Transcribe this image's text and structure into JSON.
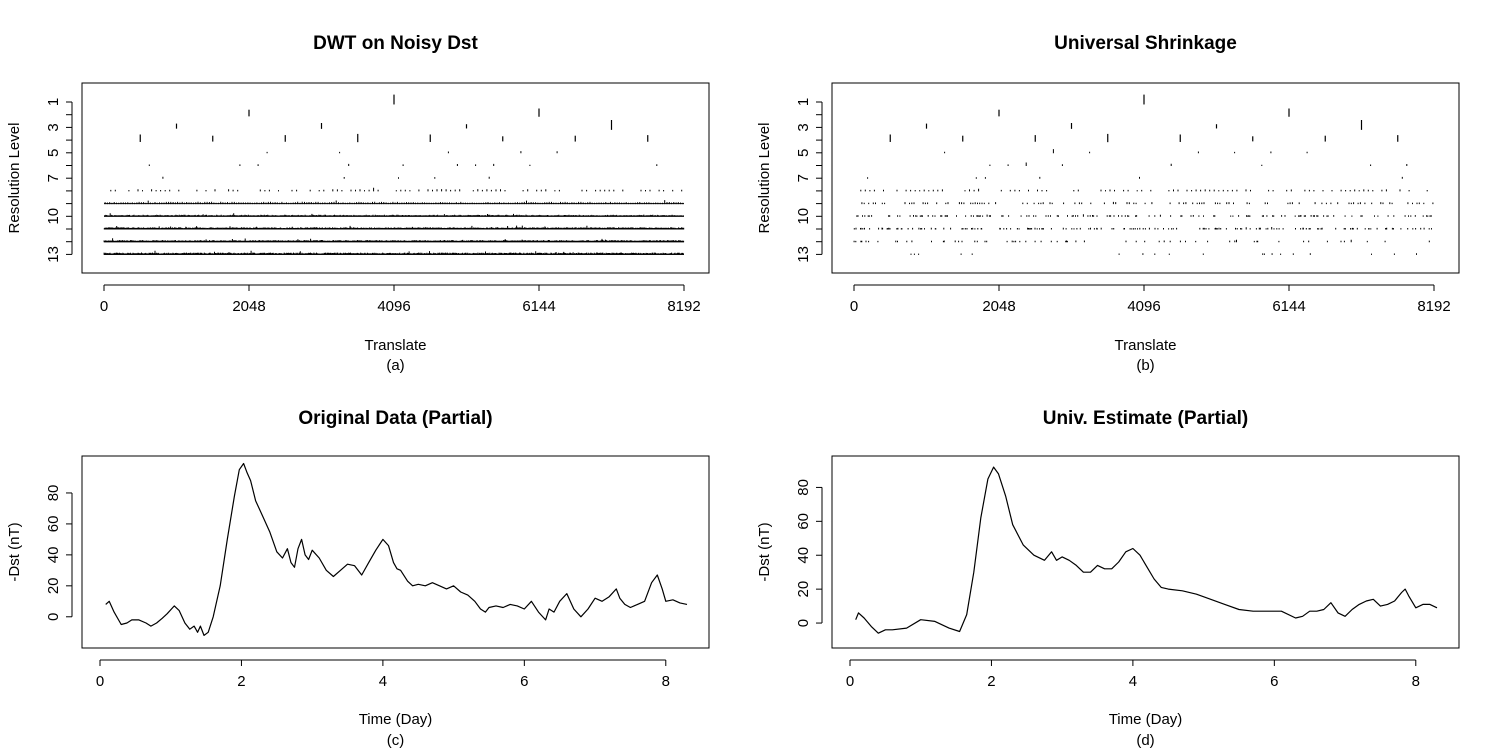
{
  "chart_data": [
    {
      "id": "a",
      "type": "wavelet-coefficient-plot",
      "title": "DWT on Noisy Dst",
      "xlabel": "Translate",
      "ylabel": "Resolution Level",
      "caption": "(a)",
      "xlim": [
        0,
        8192
      ],
      "x_ticks": [
        "0",
        "2048",
        "4096",
        "6144",
        "8192"
      ],
      "y_ticks": [
        "1",
        "3",
        "5",
        "7",
        "10",
        "13"
      ],
      "levels": [
        1,
        2,
        3,
        4,
        5,
        6,
        7,
        8,
        9,
        10,
        11,
        12,
        13
      ],
      "spikes": {
        "1": [
          [
            4096,
            0.9
          ]
        ],
        "2": [
          [
            2048,
            0.5
          ],
          [
            6144,
            0.7
          ]
        ],
        "3": [
          [
            1024,
            0.3
          ],
          [
            3072,
            0.4
          ],
          [
            5120,
            0.2
          ],
          [
            7168,
            0.9
          ]
        ],
        "4": [
          [
            512,
            0.6
          ],
          [
            1536,
            0.4
          ],
          [
            2560,
            0.5
          ],
          [
            3584,
            0.7
          ],
          [
            4608,
            0.6
          ],
          [
            5632,
            0.3
          ],
          [
            6656,
            0.4
          ],
          [
            7680,
            0.5
          ]
        ]
      },
      "density": {
        "5": 0.25,
        "6": 0.2,
        "7": 0.12,
        "8": 0.6,
        "9": 1,
        "10": 1,
        "11": 1,
        "12": 1,
        "13": 1
      },
      "noise": {
        "5": 0.35,
        "6": 0.3,
        "7": 0.25,
        "8": 0.28,
        "9": 0.28,
        "10": 0.22,
        "11": 0.25,
        "12": 0.25,
        "13": 0.3
      }
    },
    {
      "id": "b",
      "type": "wavelet-coefficient-plot",
      "title": "Universal Shrinkage",
      "xlabel": "Translate",
      "ylabel": "Resolution Level",
      "caption": "(b)",
      "xlim": [
        0,
        8192
      ],
      "x_ticks": [
        "0",
        "2048",
        "4096",
        "6144",
        "8192"
      ],
      "y_ticks": [
        "1",
        "3",
        "5",
        "7",
        "10",
        "13"
      ],
      "levels": [
        1,
        2,
        3,
        4,
        5,
        6,
        7,
        8,
        9,
        10,
        11,
        12,
        13
      ],
      "spikes": {
        "1": [
          [
            4096,
            0.9
          ]
        ],
        "2": [
          [
            2048,
            0.5
          ],
          [
            6144,
            0.7
          ]
        ],
        "3": [
          [
            1024,
            0.3
          ],
          [
            3072,
            0.4
          ],
          [
            5120,
            0.2
          ],
          [
            7168,
            0.9
          ]
        ],
        "4": [
          [
            512,
            0.6
          ],
          [
            1536,
            0.4
          ],
          [
            2560,
            0.5
          ],
          [
            3584,
            0.7
          ],
          [
            4608,
            0.6
          ],
          [
            5632,
            0.3
          ],
          [
            6656,
            0.4
          ],
          [
            7680,
            0.5
          ]
        ]
      },
      "density": {
        "5": 0.25,
        "6": 0.2,
        "7": 0.12,
        "8": 0.5,
        "9": 0.35,
        "10": 0.25,
        "11": 0.15,
        "12": 0.08,
        "13": 0.03
      },
      "noise": {
        "5": 0.35,
        "6": 0.3,
        "7": 0.25,
        "8": 0.2,
        "9": 0.2,
        "10": 0.15,
        "11": 0.12,
        "12": 0.12,
        "13": 0.1
      }
    },
    {
      "id": "c",
      "type": "line",
      "title": "Original Data (Partial)",
      "xlabel": "Time (Day)",
      "ylabel": "-Dst (nT)",
      "caption": "(c)",
      "xlim": [
        0,
        8.3
      ],
      "ylim": [
        -15,
        100
      ],
      "x_ticks": [
        0,
        2,
        4,
        6,
        8
      ],
      "y_ticks": [
        0,
        20,
        40,
        60,
        80
      ],
      "x": [
        0.08,
        0.13,
        0.2,
        0.3,
        0.38,
        0.45,
        0.55,
        0.65,
        0.72,
        0.8,
        0.88,
        0.95,
        1.05,
        1.12,
        1.2,
        1.27,
        1.33,
        1.38,
        1.42,
        1.47,
        1.53,
        1.6,
        1.7,
        1.8,
        1.9,
        1.97,
        2.03,
        2.08,
        2.13,
        2.2,
        2.3,
        2.4,
        2.5,
        2.58,
        2.65,
        2.7,
        2.75,
        2.8,
        2.85,
        2.9,
        2.95,
        3.0,
        3.1,
        3.2,
        3.3,
        3.4,
        3.5,
        3.6,
        3.7,
        3.8,
        3.9,
        4.0,
        4.08,
        4.15,
        4.2,
        4.25,
        4.35,
        4.42,
        4.5,
        4.6,
        4.7,
        4.8,
        4.9,
        5.0,
        5.1,
        5.2,
        5.3,
        5.38,
        5.45,
        5.5,
        5.6,
        5.7,
        5.8,
        5.9,
        6.0,
        6.1,
        6.2,
        6.3,
        6.35,
        6.42,
        6.5,
        6.6,
        6.7,
        6.8,
        6.9,
        7.0,
        7.1,
        7.2,
        7.3,
        7.35,
        7.42,
        7.5,
        7.6,
        7.7,
        7.8,
        7.88,
        7.95,
        8.0,
        8.1,
        8.2,
        8.3
      ],
      "y": [
        8,
        10,
        3,
        -5,
        -4,
        -2,
        -2,
        -4,
        -6,
        -4,
        -1,
        2,
        7,
        4,
        -4,
        -8,
        -6,
        -10,
        -6,
        -12,
        -10,
        0,
        20,
        50,
        78,
        95,
        99,
        93,
        88,
        75,
        65,
        55,
        42,
        38,
        44,
        35,
        32,
        44,
        50,
        40,
        37,
        43,
        38,
        30,
        26,
        30,
        34,
        33,
        27,
        35,
        43,
        50,
        46,
        35,
        31,
        30,
        23,
        20,
        21,
        20,
        22,
        20,
        18,
        20,
        16,
        14,
        10,
        5,
        3,
        6,
        7,
        6,
        8,
        7,
        5,
        10,
        3,
        -2,
        5,
        3,
        10,
        15,
        5,
        0,
        5,
        12,
        10,
        13,
        18,
        12,
        8,
        6,
        8,
        10,
        22,
        27,
        18,
        10,
        11,
        9,
        8
      ]
    },
    {
      "id": "d",
      "type": "line",
      "title": "Univ. Estimate (Partial)",
      "xlabel": "Time (Day)",
      "ylabel": "-Dst (nT)",
      "caption": "(d)",
      "xlim": [
        0,
        8.3
      ],
      "ylim": [
        -10,
        95
      ],
      "x_ticks": [
        0,
        2,
        4,
        6,
        8
      ],
      "y_ticks": [
        0,
        20,
        40,
        60,
        80
      ],
      "x": [
        0.08,
        0.12,
        0.2,
        0.3,
        0.4,
        0.5,
        0.6,
        0.8,
        1.0,
        1.2,
        1.4,
        1.55,
        1.65,
        1.75,
        1.85,
        1.95,
        2.03,
        2.1,
        2.2,
        2.3,
        2.45,
        2.6,
        2.75,
        2.85,
        2.92,
        3.0,
        3.1,
        3.2,
        3.3,
        3.4,
        3.5,
        3.6,
        3.7,
        3.8,
        3.9,
        4.0,
        4.1,
        4.2,
        4.3,
        4.4,
        4.5,
        4.7,
        4.9,
        5.1,
        5.3,
        5.5,
        5.7,
        5.9,
        6.1,
        6.3,
        6.4,
        6.5,
        6.6,
        6.7,
        6.8,
        6.9,
        7.0,
        7.1,
        7.2,
        7.3,
        7.4,
        7.5,
        7.6,
        7.7,
        7.8,
        7.85,
        7.9,
        8.0,
        8.1,
        8.2,
        8.3
      ],
      "y": [
        2,
        6,
        3,
        -2,
        -6,
        -4,
        -4,
        -3,
        2,
        1,
        -3,
        -5,
        5,
        30,
        62,
        85,
        92,
        88,
        75,
        58,
        46,
        40,
        37,
        42,
        37,
        39,
        37,
        34,
        30,
        30,
        34,
        32,
        32,
        36,
        42,
        44,
        40,
        33,
        26,
        21,
        20,
        19,
        17,
        14,
        11,
        8,
        7,
        7,
        7,
        3,
        4,
        7,
        7,
        8,
        12,
        6,
        4,
        8,
        11,
        13,
        14,
        10,
        11,
        13,
        18,
        20,
        16,
        9,
        11,
        11,
        9
      ]
    }
  ]
}
